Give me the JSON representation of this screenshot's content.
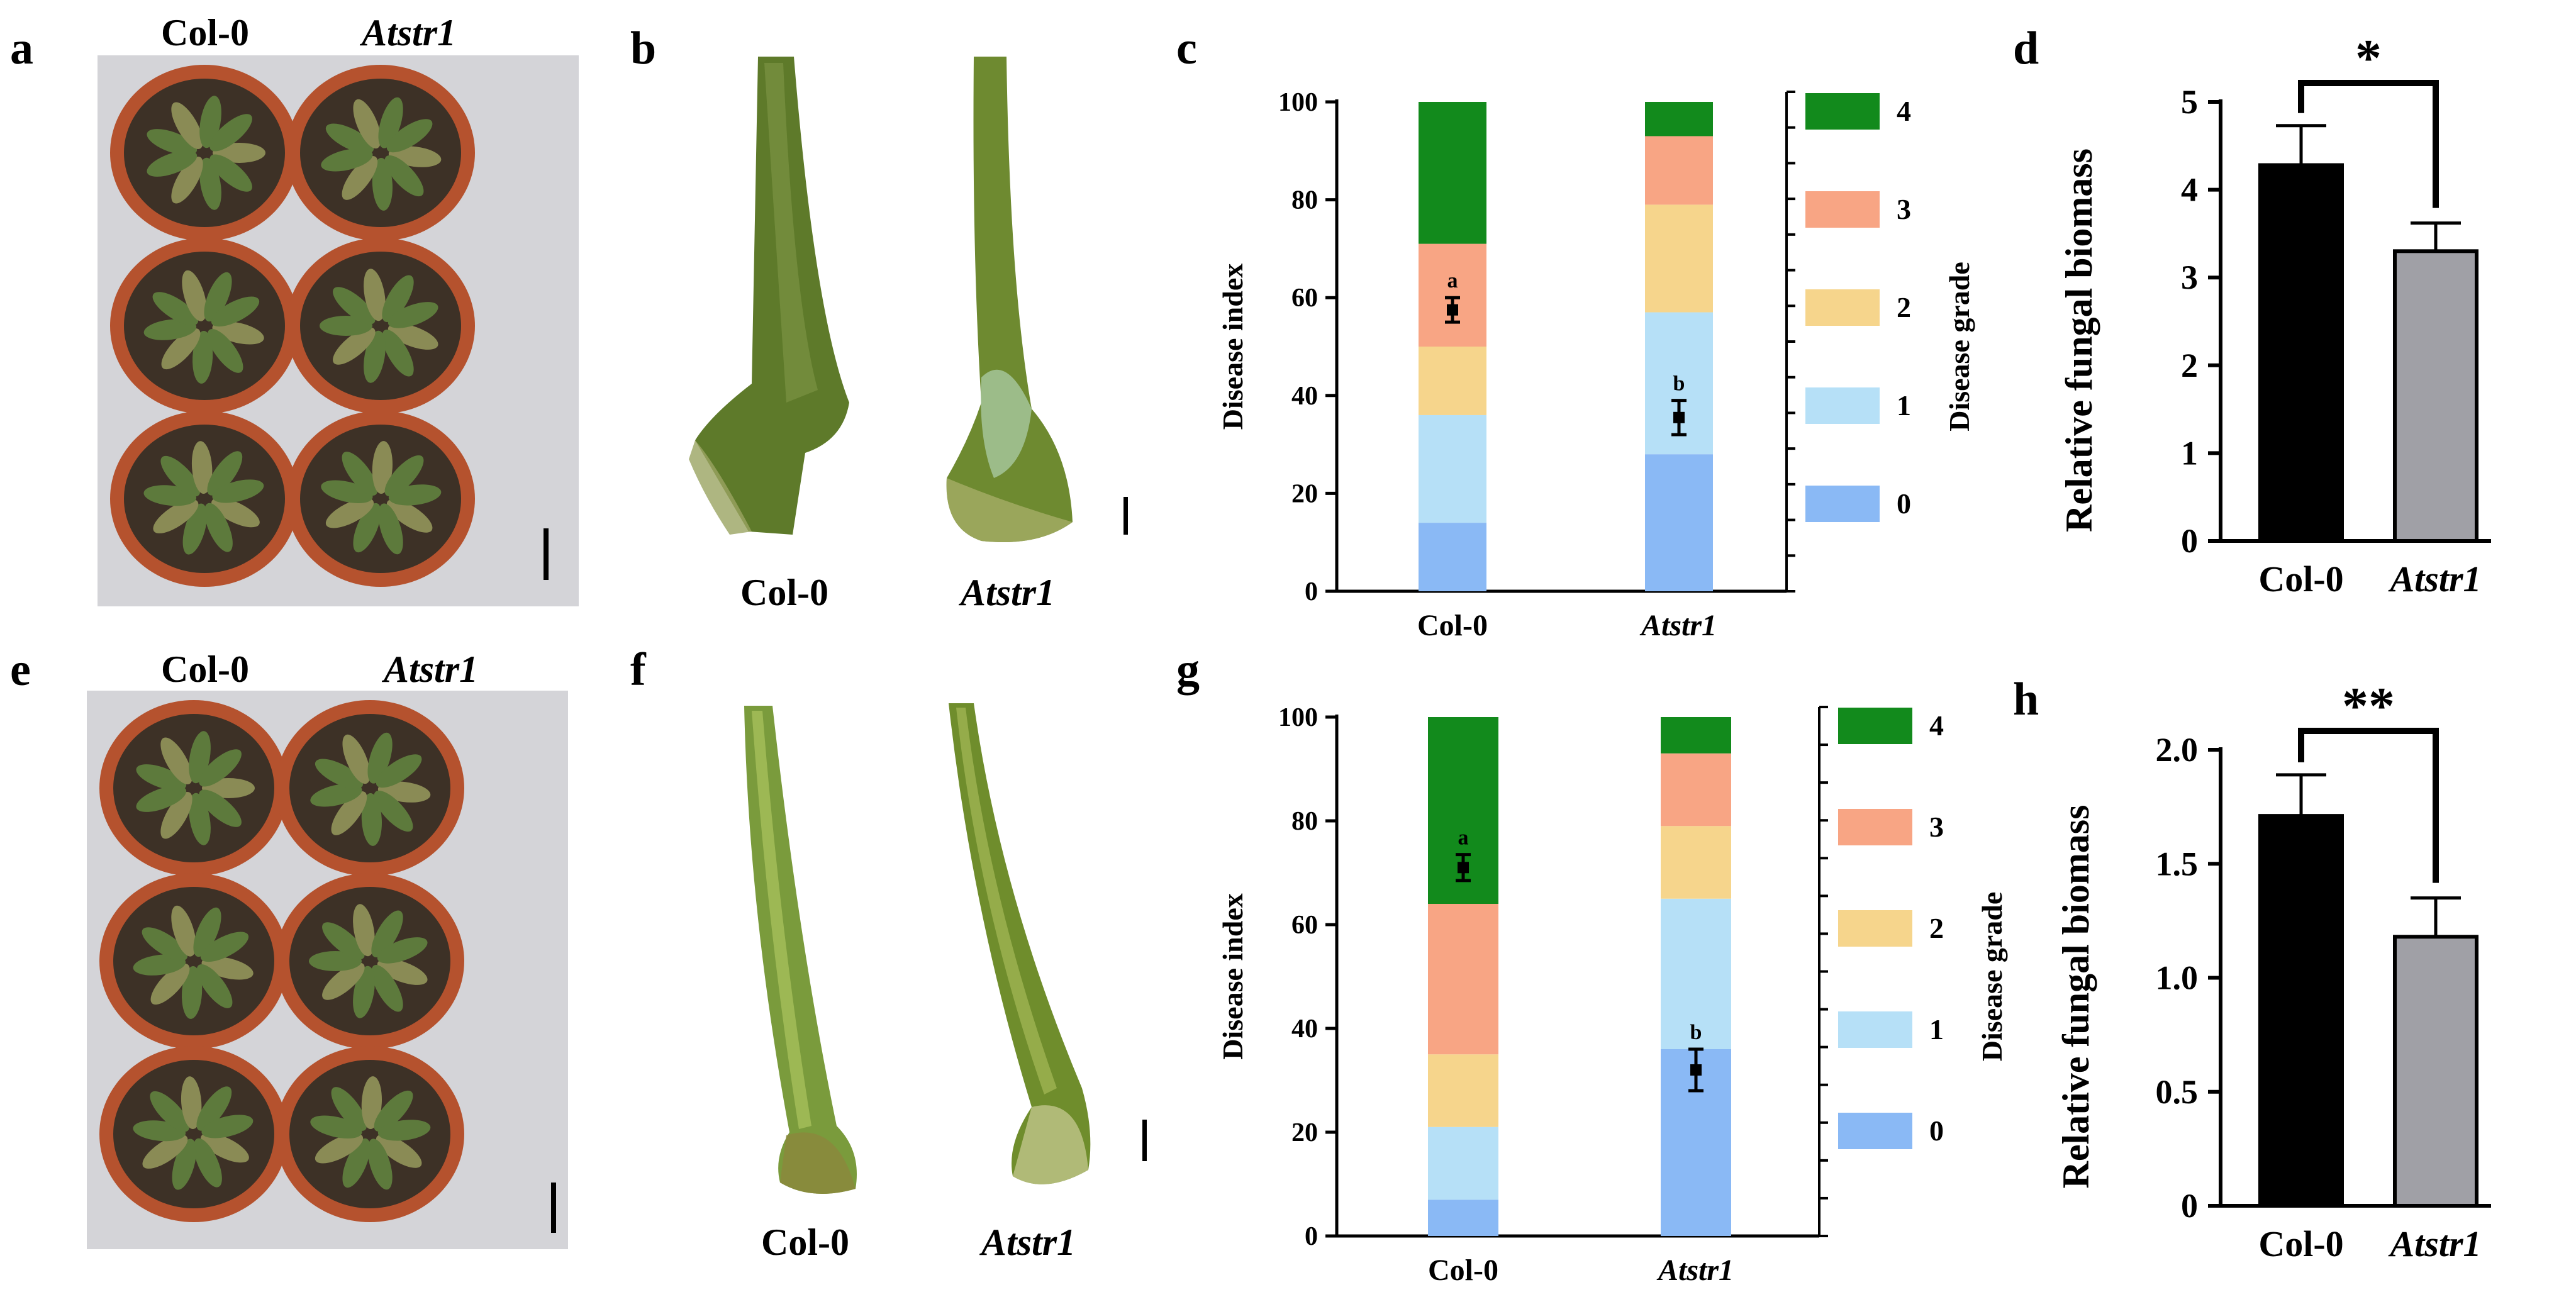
{
  "panel_letters": [
    "a",
    "b",
    "c",
    "d",
    "e",
    "f",
    "g",
    "h"
  ],
  "genotypes": {
    "wt": "Col-0",
    "mutant": "Atstr1"
  },
  "colors": {
    "grade_0": "#8ab9f5",
    "grade_1": "#b6e0f7",
    "grade_2": "#f6d58c",
    "grade_3": "#f8a584",
    "grade_4": "#128a1c",
    "bar_wt": "#000000",
    "bar_mutant": "#a0a0a6",
    "pot": "#b5522e",
    "soil": "#3d3126",
    "leaf": "#5d7a3c",
    "backdrop": "#d4d4d8"
  },
  "chart_data": [
    {
      "id": "c",
      "type": "bar",
      "stacked": true,
      "categories": [
        "Col-0",
        "Atstr1"
      ],
      "ylabel": "Disease index",
      "ylabel2": "Disease grade",
      "ylim": [
        0,
        100
      ],
      "yticks": [
        0,
        20,
        40,
        60,
        80,
        100
      ],
      "legend": [
        "4",
        "3",
        "2",
        "1",
        "0"
      ],
      "legend_placement": "right",
      "series": [
        {
          "grade": "0",
          "values": [
            14,
            28
          ]
        },
        {
          "grade": "1",
          "values": [
            22,
            29
          ]
        },
        {
          "grade": "2",
          "values": [
            14,
            22
          ]
        },
        {
          "grade": "3",
          "values": [
            21,
            14
          ]
        },
        {
          "grade": "4",
          "values": [
            29,
            7
          ]
        }
      ],
      "disease_index": [
        57.5,
        35.5
      ],
      "disease_index_err": [
        2.5,
        3.5
      ],
      "letters": [
        "a",
        "b"
      ]
    },
    {
      "id": "d",
      "type": "bar",
      "categories": [
        "Col-0",
        "Atstr1"
      ],
      "ylabel": "Relative fungal biomass",
      "ylim": [
        0,
        5
      ],
      "yticks": [
        0,
        1,
        2,
        3,
        4,
        5
      ],
      "values": [
        4.28,
        3.3
      ],
      "errors": [
        0.45,
        0.32
      ],
      "significance": "*"
    },
    {
      "id": "g",
      "type": "bar",
      "stacked": true,
      "categories": [
        "Col-0",
        "Atstr1"
      ],
      "ylabel": "Disease index",
      "ylabel2": "Disease grade",
      "ylim": [
        0,
        100
      ],
      "yticks": [
        0,
        20,
        40,
        60,
        80,
        100
      ],
      "legend": [
        "4",
        "3",
        "2",
        "1",
        "0"
      ],
      "legend_placement": "right",
      "series": [
        {
          "grade": "0",
          "values": [
            7,
            36
          ]
        },
        {
          "grade": "1",
          "values": [
            14,
            29
          ]
        },
        {
          "grade": "2",
          "values": [
            14,
            14
          ]
        },
        {
          "grade": "3",
          "values": [
            29,
            14
          ]
        },
        {
          "grade": "4",
          "values": [
            36,
            7
          ]
        }
      ],
      "disease_index": [
        71,
        32
      ],
      "disease_index_err": [
        2.5,
        4
      ],
      "letters": [
        "a",
        "b"
      ]
    },
    {
      "id": "h",
      "type": "bar",
      "categories": [
        "Col-0",
        "Atstr1"
      ],
      "ylabel": "Relative fungal biomass",
      "ylim": [
        0,
        2.0
      ],
      "yticks": [
        "0",
        "0.5",
        "1.0",
        "1.5",
        "2.0"
      ],
      "values": [
        1.71,
        1.18
      ],
      "errors": [
        0.18,
        0.17
      ],
      "significance": "**"
    }
  ]
}
